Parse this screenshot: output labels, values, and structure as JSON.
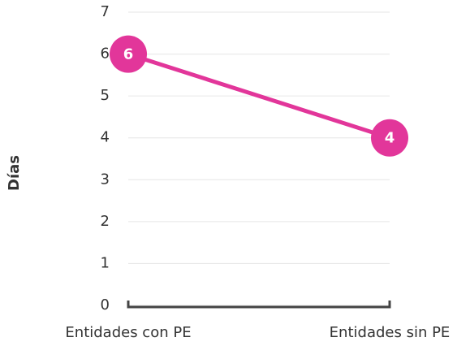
{
  "chart_data": {
    "type": "line",
    "y_label": "Días",
    "categories": [
      "Entidades con PE",
      "Entidades sin PE"
    ],
    "values": [
      6,
      4
    ],
    "color": "#e2369a",
    "ylim": [
      0,
      7
    ],
    "yticks": [
      0,
      1,
      2,
      3,
      4,
      5,
      6,
      7
    ],
    "grid": true
  }
}
